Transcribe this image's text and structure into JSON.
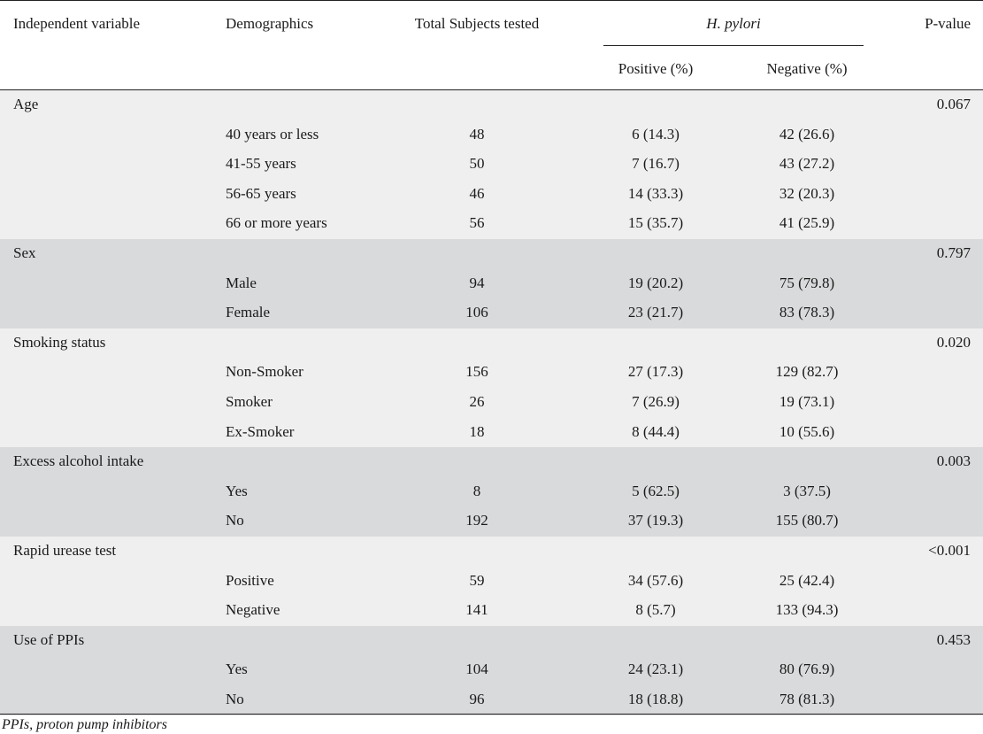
{
  "header": {
    "independent_variable": "Independent variable",
    "demographics": "Demographics",
    "total_subjects": "Total Subjects tested",
    "hpylori": "H. pylori",
    "p_value": "P-value",
    "positive": "Positive (%)",
    "negative": "Negative (%)"
  },
  "groups": [
    {
      "variable": "Age",
      "p": "0.067",
      "rows": [
        {
          "demo": "40 years or less",
          "total": "48",
          "pos": "6 (14.3)",
          "neg": "42 (26.6)"
        },
        {
          "demo": "41-55 years",
          "total": "50",
          "pos": "7 (16.7)",
          "neg": "43 (27.2)"
        },
        {
          "demo": "56-65 years",
          "total": "46",
          "pos": "14 (33.3)",
          "neg": "32 (20.3)"
        },
        {
          "demo": "66 or more years",
          "total": "56",
          "pos": "15 (35.7)",
          "neg": "41 (25.9)"
        }
      ]
    },
    {
      "variable": "Sex",
      "p": "0.797",
      "rows": [
        {
          "demo": "Male",
          "total": "94",
          "pos": "19 (20.2)",
          "neg": "75 (79.8)"
        },
        {
          "demo": "Female",
          "total": "106",
          "pos": "23 (21.7)",
          "neg": "83 (78.3)"
        }
      ]
    },
    {
      "variable": "Smoking status",
      "p": "0.020",
      "rows": [
        {
          "demo": "Non-Smoker",
          "total": "156",
          "pos": "27 (17.3)",
          "neg": "129 (82.7)"
        },
        {
          "demo": "Smoker",
          "total": "26",
          "pos": "7 (26.9)",
          "neg": "19 (73.1)"
        },
        {
          "demo": "Ex-Smoker",
          "total": "18",
          "pos": "8 (44.4)",
          "neg": "10 (55.6)"
        }
      ]
    },
    {
      "variable": "Excess alcohol intake",
      "p": "0.003",
      "rows": [
        {
          "demo": "Yes",
          "total": "8",
          "pos": "5 (62.5)",
          "neg": "3 (37.5)"
        },
        {
          "demo": "No",
          "total": "192",
          "pos": "37 (19.3)",
          "neg": "155 (80.7)"
        }
      ]
    },
    {
      "variable": "Rapid urease test",
      "p": "<0.001",
      "rows": [
        {
          "demo": "Positive",
          "total": "59",
          "pos": "34 (57.6)",
          "neg": "25 (42.4)"
        },
        {
          "demo": "Negative",
          "total": "141",
          "pos": "8 (5.7)",
          "neg": "133 (94.3)"
        }
      ]
    },
    {
      "variable": "Use of PPIs",
      "p": "0.453",
      "rows": [
        {
          "demo": "Yes",
          "total": "104",
          "pos": "24 (23.1)",
          "neg": "80 (76.9)"
        },
        {
          "demo": "No",
          "total": "96",
          "pos": "18 (18.8)",
          "neg": "78 (81.3)"
        }
      ]
    }
  ],
  "footnote": "PPIs, proton pump inhibitors"
}
